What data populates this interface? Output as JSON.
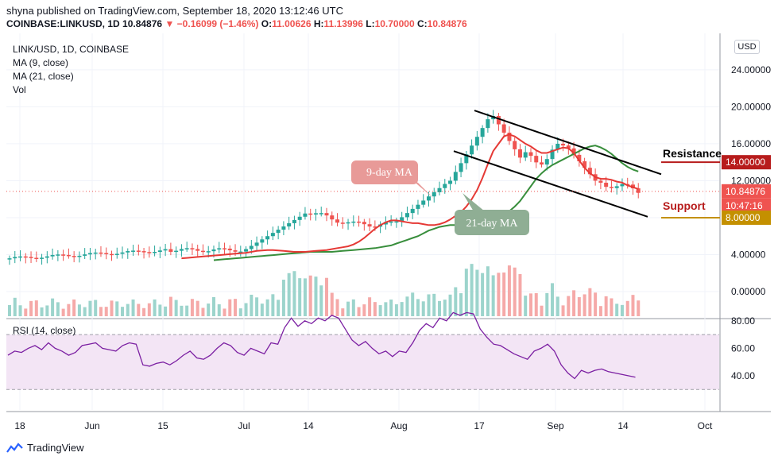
{
  "header": {
    "publish_line": "shyna published on TradingView.com, September 18, 2020 13:12:46 UTC",
    "symbol_line": "COINBASE:LINKUSD, 1D",
    "last": "10.84876",
    "change": "−0.16099 (−1.46%)",
    "o_label": "O:",
    "o": "11.00626",
    "h_label": "H:",
    "h": "11.13996",
    "l_label": "L:",
    "l": "10.70000",
    "c_label": "C:",
    "c": "10.84876"
  },
  "legend": {
    "title": "LINK/USD, 1D, COINBASE",
    "ma9": "MA (9, close)",
    "ma21": "MA (21, close)",
    "vol": "Vol"
  },
  "rsi_legend": "RSI (14, close)",
  "currency": "USD",
  "brand": "TradingView",
  "colors": {
    "up": "#26a69a",
    "down": "#ef5350",
    "ma9": "#e53935",
    "ma21": "#388e3c",
    "rsi": "#7b1fa2",
    "rsi_band": "#f3e5f5",
    "resistance": "#b71c1c",
    "support": "#c49000"
  },
  "chart_data": [
    {
      "type": "candlestick",
      "symbol": "LINK/USD",
      "interval": "1D",
      "y_ticks": [
        "24.00000",
        "20.00000",
        "16.00000",
        "12.00000",
        "8.00000",
        "4.00000",
        "0.00000"
      ],
      "x_ticks": [
        "18",
        "Jun",
        "15",
        "Jul",
        "14",
        "Aug",
        "17",
        "Sep",
        "14",
        "Oct"
      ],
      "ma9": [
        3.6,
        3.65,
        3.7,
        3.75,
        3.8,
        3.85,
        3.9,
        3.95,
        4.0,
        4.05,
        4.1,
        4.15,
        4.2,
        4.3,
        4.4,
        4.45,
        4.5,
        4.5,
        4.45,
        4.4,
        4.35,
        4.3,
        4.3,
        4.3,
        4.35,
        4.4,
        4.45,
        4.5,
        4.6,
        4.7,
        4.8,
        4.9,
        5.1,
        5.4,
        5.8,
        6.3,
        6.8,
        7.2,
        7.5,
        7.7,
        7.7,
        7.6,
        7.5,
        7.4,
        7.4,
        7.3,
        7.2,
        7.2,
        7.3,
        7.5,
        7.8,
        8.2,
        8.6,
        9.2,
        10.0,
        11.0,
        12.3,
        13.8,
        15.2,
        16.0,
        16.8,
        17.0,
        16.8,
        16.4,
        16.0,
        15.7,
        15.3,
        15.0,
        15.0,
        15.2,
        15.4,
        15.6,
        15.5,
        15.0,
        14.2,
        13.4,
        12.8,
        12.4,
        12.2,
        12.2,
        12.1,
        11.9,
        11.8,
        11.5,
        11.3,
        11.1
      ],
      "ma21": [
        3.4,
        3.45,
        3.5,
        3.55,
        3.6,
        3.65,
        3.7,
        3.75,
        3.8,
        3.85,
        3.9,
        3.95,
        4.0,
        4.05,
        4.1,
        4.15,
        4.2,
        4.25,
        4.3,
        4.3,
        4.3,
        4.3,
        4.3,
        4.35,
        4.4,
        4.45,
        4.5,
        4.55,
        4.6,
        4.65,
        4.7,
        4.8,
        4.9,
        5.0,
        5.2,
        5.4,
        5.6,
        5.8,
        6.0,
        6.3,
        6.6,
        6.8,
        7.0,
        7.1,
        7.2,
        7.2,
        7.2,
        7.2,
        7.3,
        7.4,
        7.5,
        7.6,
        7.8,
        8.0,
        8.3,
        8.7,
        9.2,
        9.8,
        10.6,
        11.4,
        12.2,
        12.8,
        13.3,
        13.7,
        14.0,
        14.3,
        14.6,
        14.9,
        15.2,
        15.5,
        15.7,
        15.8,
        15.6,
        15.3,
        14.9,
        14.4,
        13.9,
        13.5,
        13.2,
        13.0
      ],
      "resistance": 14.0,
      "support": 8.0,
      "last_price": "10.84876",
      "countdown": "10:47:16",
      "annotations": {
        "ma9_label": "9-day MA",
        "ma21_label": "21-day MA",
        "resistance_label": "Resistance",
        "support_label": "Support"
      }
    },
    {
      "type": "line",
      "name": "RSI (14, close)",
      "y_ticks": [
        "80.00",
        "60.00",
        "40.00"
      ],
      "band": [
        30,
        70
      ],
      "values": [
        55,
        58,
        57,
        60,
        62,
        59,
        64,
        60,
        58,
        55,
        57,
        62,
        63,
        64,
        60,
        59,
        58,
        62,
        64,
        63,
        48,
        47,
        49,
        50,
        48,
        51,
        55,
        58,
        53,
        52,
        55,
        60,
        64,
        62,
        57,
        55,
        60,
        58,
        56,
        64,
        63,
        75,
        82,
        76,
        80,
        78,
        82,
        80,
        84,
        82,
        74,
        66,
        62,
        65,
        60,
        56,
        58,
        54,
        58,
        57,
        64,
        73,
        78,
        75,
        82,
        80,
        86,
        84,
        86,
        85,
        74,
        68,
        63,
        62,
        59,
        56,
        54,
        52,
        58,
        60,
        63,
        58,
        48,
        42,
        38,
        44,
        42,
        44,
        45,
        43,
        42,
        41,
        40,
        39
      ]
    }
  ]
}
